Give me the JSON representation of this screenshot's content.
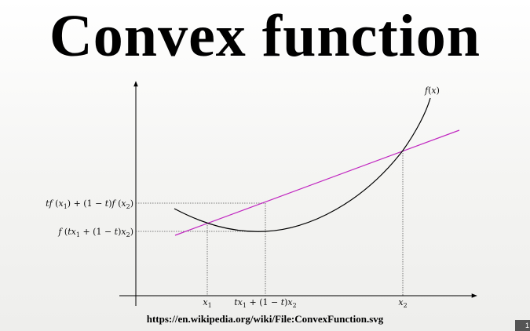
{
  "slide": {
    "title": "Convex function",
    "source": "https://en.wikipedia.org/wiki/File:ConvexFunction.svg",
    "page_number": "1"
  },
  "diagram": {
    "curve_label": "f(x)",
    "labels": {
      "x1": "x1",
      "mid_x": "tx1 + (1 − t)x2",
      "x2": "x2",
      "chord_value": "tf(x1) + (1 − t)f(x2)",
      "function_value": "f(tx1 + (1 − t)x2)"
    },
    "colors": {
      "curve": "#000000",
      "secant": "#c026c0",
      "axes": "#000000",
      "guides": "#555555"
    }
  }
}
